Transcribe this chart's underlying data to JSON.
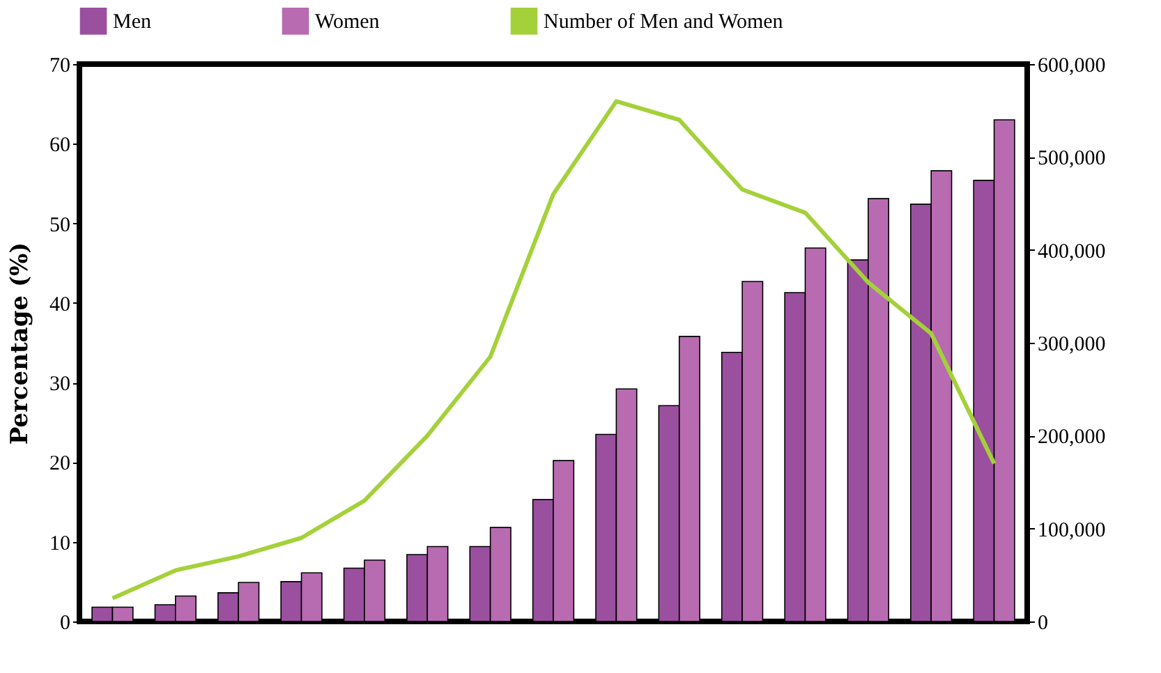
{
  "chart_data": {
    "type": "bar",
    "ylabel": "Percentage (%)",
    "categories": [
      null,
      null,
      null,
      null,
      null,
      null,
      null,
      null,
      null,
      null,
      null,
      null,
      null,
      null,
      null
    ],
    "series": [
      {
        "name": "Men",
        "color": "#9b4f9f",
        "values": [
          1.8,
          2.1,
          3.6,
          5.0,
          6.7,
          8.4,
          9.4,
          15.3,
          23.5,
          27.1,
          33.8,
          41.3,
          45.4,
          52.4,
          55.4
        ]
      },
      {
        "name": "Women",
        "color": "#b86bb0",
        "values": [
          1.8,
          3.2,
          4.9,
          6.1,
          7.7,
          9.4,
          11.8,
          20.2,
          29.2,
          35.8,
          42.7,
          46.9,
          53.1,
          56.6,
          63.0
        ]
      },
      {
        "name": "Number of Men and Women",
        "color": "#a4d13a",
        "type": "line",
        "axis": "y2",
        "marker": "none",
        "values": [
          25000,
          55000,
          70000,
          90000,
          130000,
          200000,
          285000,
          460000,
          560000,
          540000,
          465000,
          440000,
          365000,
          310000,
          170000
        ]
      }
    ],
    "ylim": [
      0,
      70
    ],
    "yticks": [
      0,
      10,
      20,
      30,
      40,
      50,
      60,
      70
    ],
    "y2lim": [
      0,
      600000
    ],
    "y2ticks": [
      0,
      {
        "value": 100000,
        "label": "100,000"
      },
      {
        "value": 200000,
        "label": "200,000"
      },
      {
        "value": 300000,
        "label": "300,000"
      },
      {
        "value": 400000,
        "label": "400,000"
      },
      {
        "value": 500000,
        "label": "500,000"
      },
      {
        "value": 600000,
        "label": "600,000"
      }
    ],
    "grid": false,
    "legend": "top"
  }
}
